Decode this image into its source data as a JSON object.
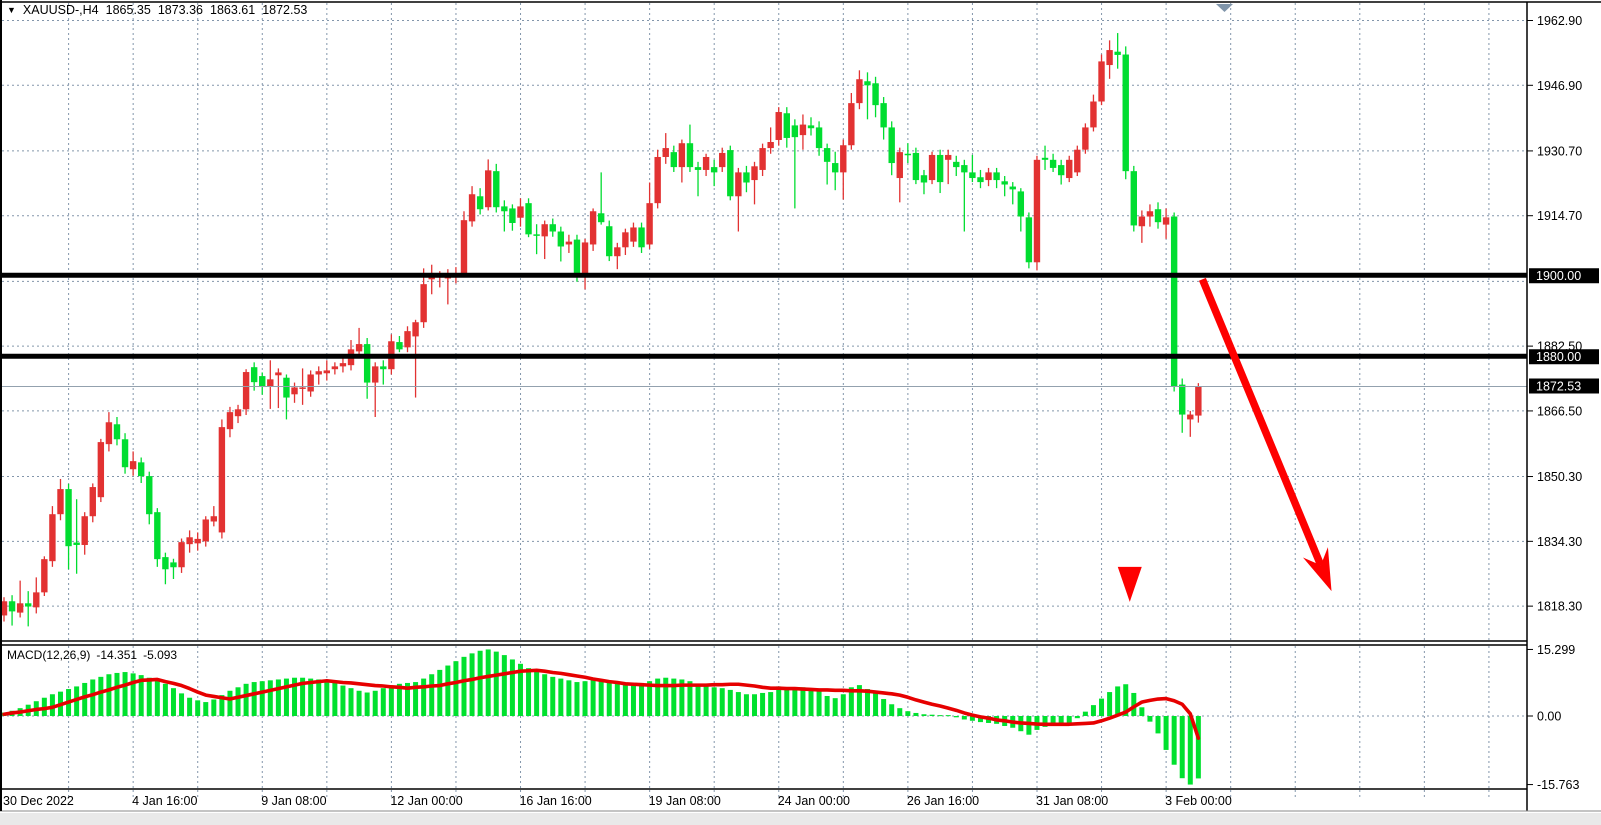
{
  "title": {
    "dropdown_icon": "▼",
    "symbol": "XAUUSD-,H4",
    "open": "1865.35",
    "high": "1873.36",
    "low": "1863.61",
    "close": "1872.53"
  },
  "macd_label": {
    "name": "MACD(12,26,9)",
    "value": "-14.351",
    "signal": "-5.093"
  },
  "colors": {
    "bull": "#e23232",
    "bear": "#00dd30",
    "histogram": "#00e12e",
    "signal_line": "#e60000",
    "grid": "#8396ab",
    "level_line": "#000000",
    "bid_line": "#93a1ae",
    "arrow": "#fe0000",
    "tag_bg": "#000000",
    "tag_text": "#ffffff",
    "scroll_marker": "#8095aa",
    "footer_bg": "#e9e9e9",
    "border": "#000000"
  },
  "price_axis": {
    "ticks": [
      1962.9,
      1946.9,
      1930.7,
      1914.7,
      1882.5,
      1866.5,
      1850.3,
      1834.3,
      1818.3
    ],
    "tags": [
      {
        "label": "1900.00",
        "price": 1900.0
      },
      {
        "label": "1880.00",
        "price": 1880.0
      }
    ],
    "current_tag": {
      "label": "1872.53",
      "price": 1872.53
    }
  },
  "macd_axis": {
    "max": 15.299,
    "max_label": "15.299",
    "zero_label": "0.00",
    "min": -15.763,
    "min_label": "-15.763"
  },
  "time_axis": [
    {
      "label": "30 Dec 2022",
      "bar": 0
    },
    {
      "label": "4 Jan 16:00",
      "bar": 16
    },
    {
      "label": "9 Jan 08:00",
      "bar": 32
    },
    {
      "label": "12 Jan 00:00",
      "bar": 48
    },
    {
      "label": "16 Jan 16:00",
      "bar": 64
    },
    {
      "label": "19 Jan 08:00",
      "bar": 80
    },
    {
      "label": "24 Jan 00:00",
      "bar": 96
    },
    {
      "label": "26 Jan 16:00",
      "bar": 112
    },
    {
      "label": "31 Jan 08:00",
      "bar": 128
    },
    {
      "label": "3 Feb 00:00",
      "bar": 144
    }
  ],
  "chart_data": {
    "type": "candlestick",
    "symbol": "XAUUSD-",
    "timeframe": "H4",
    "title": "XAUUSD-,H4 1865.35 1873.36 1863.61 1872.53",
    "price_ylim": [
      1810.0,
      1966.5
    ],
    "price_gridlines": [
      1962.9,
      1946.9,
      1930.7,
      1914.7,
      1898.5,
      1882.5,
      1866.5,
      1850.3,
      1834.3,
      1818.3
    ],
    "horizontal_levels": [
      1900.0,
      1880.0
    ],
    "current_price": 1872.53,
    "candles": [
      [
        1816.0,
        1820.5,
        1814.5,
        1819.5
      ],
      [
        1819.5,
        1821.0,
        1813.5,
        1817.0
      ],
      [
        1816.7,
        1824.6,
        1815.5,
        1819.0
      ],
      [
        1819.0,
        1822.0,
        1813.3,
        1818.2
      ],
      [
        1818.0,
        1825.4,
        1816.5,
        1821.7
      ],
      [
        1821.7,
        1830.6,
        1820.8,
        1829.9
      ],
      [
        1829.4,
        1843.0,
        1828.0,
        1841.0
      ],
      [
        1841.0,
        1849.7,
        1839.5,
        1847.2
      ],
      [
        1847.2,
        1848.5,
        1827.4,
        1833.1
      ],
      [
        1834.0,
        1844.7,
        1826.3,
        1833.4
      ],
      [
        1833.4,
        1841.5,
        1831.0,
        1840.5
      ],
      [
        1840.5,
        1848.6,
        1839.0,
        1847.7
      ],
      [
        1845.2,
        1859.6,
        1844.0,
        1858.8
      ],
      [
        1858.3,
        1866.2,
        1856.5,
        1863.7
      ],
      [
        1863.2,
        1865.0,
        1858.0,
        1859.5
      ],
      [
        1859.5,
        1861.0,
        1851.0,
        1852.6
      ],
      [
        1852.1,
        1856.5,
        1850.5,
        1854.1
      ],
      [
        1853.8,
        1855.0,
        1848.7,
        1850.4
      ],
      [
        1850.4,
        1851.5,
        1838.5,
        1841.0
      ],
      [
        1841.5,
        1842.5,
        1828.0,
        1829.9
      ],
      [
        1830.4,
        1831.5,
        1823.7,
        1827.4
      ],
      [
        1829.1,
        1830.0,
        1825.0,
        1827.9
      ],
      [
        1827.9,
        1835.0,
        1826.5,
        1834.1
      ],
      [
        1833.6,
        1837.0,
        1831.5,
        1835.3
      ],
      [
        1833.8,
        1836.5,
        1832.0,
        1834.9
      ],
      [
        1834.3,
        1840.5,
        1833.0,
        1839.7
      ],
      [
        1839.2,
        1843.0,
        1838.0,
        1840.5
      ],
      [
        1836.5,
        1864.4,
        1835.0,
        1862.5
      ],
      [
        1862.0,
        1867.5,
        1860.0,
        1866.2
      ],
      [
        1865.2,
        1868.0,
        1863.5,
        1866.9
      ],
      [
        1866.9,
        1876.8,
        1865.5,
        1876.1
      ],
      [
        1877.3,
        1878.5,
        1871.5,
        1873.6
      ],
      [
        1875.1,
        1876.0,
        1870.5,
        1872.4
      ],
      [
        1872.6,
        1879.0,
        1867.0,
        1874.3
      ],
      [
        1875.3,
        1877.0,
        1867.2,
        1876.0
      ],
      [
        1874.7,
        1875.5,
        1864.4,
        1869.8
      ],
      [
        1870.6,
        1873.5,
        1868.5,
        1872.3
      ],
      [
        1872.0,
        1877.0,
        1868.0,
        1872.3
      ],
      [
        1871.3,
        1876.5,
        1870.0,
        1875.5
      ],
      [
        1875.5,
        1877.5,
        1873.0,
        1876.3
      ],
      [
        1875.8,
        1879.0,
        1874.0,
        1876.5
      ],
      [
        1876.8,
        1878.5,
        1875.5,
        1877.5
      ],
      [
        1877.5,
        1879.5,
        1876.0,
        1878.3
      ],
      [
        1877.8,
        1884.0,
        1876.5,
        1881.7
      ],
      [
        1881.2,
        1887.0,
        1880.0,
        1883.0
      ],
      [
        1883.0,
        1884.5,
        1869.5,
        1873.5
      ],
      [
        1873.5,
        1878.5,
        1865.0,
        1877.5
      ],
      [
        1877.5,
        1879.0,
        1873.0,
        1876.8
      ],
      [
        1876.8,
        1885.4,
        1875.5,
        1883.7
      ],
      [
        1883.5,
        1885.0,
        1881.0,
        1881.7
      ],
      [
        1882.2,
        1887.4,
        1881.0,
        1886.2
      ],
      [
        1884.9,
        1889.0,
        1869.8,
        1888.4
      ],
      [
        1888.4,
        1901.7,
        1887.0,
        1897.8
      ],
      [
        1899.0,
        1902.6,
        1895.3,
        1899.5
      ],
      [
        1899.5,
        1901.0,
        1897.0,
        1899.8
      ],
      [
        1899.2,
        1901.5,
        1892.8,
        1899.9
      ],
      [
        1899.9,
        1902.0,
        1898.0,
        1900.5
      ],
      [
        1900.2,
        1915.8,
        1899.5,
        1913.6
      ],
      [
        1913.3,
        1922.0,
        1912.0,
        1920.0
      ],
      [
        1919.5,
        1921.5,
        1915.0,
        1916.3
      ],
      [
        1916.8,
        1928.6,
        1916.0,
        1925.9
      ],
      [
        1925.7,
        1927.5,
        1915.5,
        1916.8
      ],
      [
        1917.0,
        1918.5,
        1910.8,
        1915.8
      ],
      [
        1916.5,
        1917.5,
        1911.0,
        1912.9
      ],
      [
        1914.2,
        1919.0,
        1912.0,
        1917.0
      ],
      [
        1917.8,
        1919.0,
        1909.4,
        1910.1
      ],
      [
        1910.1,
        1912.6,
        1905.2,
        1910.0
      ],
      [
        1909.6,
        1913.5,
        1904.0,
        1912.6
      ],
      [
        1912.6,
        1914.0,
        1909.5,
        1910.8
      ],
      [
        1910.8,
        1912.0,
        1903.4,
        1907.1
      ],
      [
        1907.6,
        1910.0,
        1905.5,
        1908.3
      ],
      [
        1908.8,
        1910.0,
        1898.4,
        1899.7
      ],
      [
        1899.7,
        1909.0,
        1896.5,
        1908.1
      ],
      [
        1907.6,
        1916.5,
        1906.0,
        1915.8
      ],
      [
        1915.3,
        1925.4,
        1912.5,
        1913.1
      ],
      [
        1912.1,
        1913.5,
        1903.5,
        1904.7
      ],
      [
        1904.7,
        1908.0,
        1901.5,
        1906.9
      ],
      [
        1906.9,
        1911.5,
        1905.0,
        1910.6
      ],
      [
        1908.3,
        1913.0,
        1907.0,
        1911.8
      ],
      [
        1911.8,
        1913.0,
        1905.5,
        1906.9
      ],
      [
        1907.6,
        1922.9,
        1906.5,
        1917.8
      ],
      [
        1917.8,
        1931.0,
        1916.5,
        1929.2
      ],
      [
        1929.2,
        1935.1,
        1927.5,
        1931.4
      ],
      [
        1930.4,
        1932.0,
        1925.5,
        1926.7
      ],
      [
        1926.7,
        1933.5,
        1922.9,
        1932.6
      ],
      [
        1932.6,
        1937.2,
        1925.5,
        1926.7
      ],
      [
        1926.7,
        1928.0,
        1919.5,
        1926.0
      ],
      [
        1926.0,
        1930.0,
        1924.5,
        1929.2
      ],
      [
        1926.7,
        1928.5,
        1922.0,
        1925.4
      ],
      [
        1926.7,
        1931.5,
        1925.5,
        1930.2
      ],
      [
        1930.9,
        1932.0,
        1918.5,
        1919.5
      ],
      [
        1919.5,
        1926.5,
        1910.8,
        1925.4
      ],
      [
        1925.4,
        1927.0,
        1920.5,
        1922.9
      ],
      [
        1923.5,
        1928.0,
        1917.5,
        1926.9
      ],
      [
        1926.0,
        1932.5,
        1924.5,
        1931.4
      ],
      [
        1931.4,
        1936.5,
        1930.0,
        1932.9
      ],
      [
        1933.4,
        1941.5,
        1932.0,
        1940.3
      ],
      [
        1940.0,
        1941.5,
        1931.5,
        1933.9
      ],
      [
        1937.0,
        1938.5,
        1916.5,
        1934.1
      ],
      [
        1934.6,
        1939.7,
        1931.0,
        1937.2
      ],
      [
        1937.0,
        1939.0,
        1934.5,
        1936.3
      ],
      [
        1936.5,
        1938.0,
        1929.5,
        1931.4
      ],
      [
        1931.4,
        1932.5,
        1922.4,
        1928.0
      ],
      [
        1927.7,
        1930.5,
        1921.0,
        1925.4
      ],
      [
        1925.4,
        1933.5,
        1918.7,
        1932.1
      ],
      [
        1932.1,
        1945.0,
        1931.0,
        1942.5
      ],
      [
        1942.5,
        1950.6,
        1941.0,
        1948.4
      ],
      [
        1947.9,
        1950.1,
        1938.5,
        1946.9
      ],
      [
        1947.4,
        1949.0,
        1939.0,
        1942.0
      ],
      [
        1942.5,
        1944.0,
        1933.5,
        1936.5
      ],
      [
        1936.5,
        1938.0,
        1924.7,
        1927.7
      ],
      [
        1924.0,
        1931.5,
        1918.0,
        1930.4
      ],
      [
        1930.0,
        1932.6,
        1927.7,
        1929.8
      ],
      [
        1930.2,
        1931.5,
        1922.5,
        1923.5
      ],
      [
        1924.7,
        1926.0,
        1920.0,
        1922.9
      ],
      [
        1923.5,
        1930.5,
        1922.5,
        1929.7
      ],
      [
        1929.7,
        1931.0,
        1920.3,
        1923.0
      ],
      [
        1928.5,
        1931.0,
        1922.5,
        1929.7
      ],
      [
        1928.0,
        1929.5,
        1924.5,
        1926.7
      ],
      [
        1927.2,
        1928.5,
        1910.8,
        1925.4
      ],
      [
        1925.4,
        1929.7,
        1923.0,
        1924.0
      ],
      [
        1924.2,
        1926.0,
        1921.5,
        1923.0
      ],
      [
        1923.5,
        1926.5,
        1922.0,
        1925.4
      ],
      [
        1925.4,
        1926.5,
        1921.5,
        1923.5
      ],
      [
        1923.2,
        1924.5,
        1919.5,
        1922.4
      ],
      [
        1921.9,
        1923.0,
        1917.5,
        1921.2
      ],
      [
        1920.7,
        1921.5,
        1910.8,
        1914.5
      ],
      [
        1914.3,
        1915.5,
        1901.7,
        1903.2
      ],
      [
        1903.2,
        1929.5,
        1901.2,
        1928.5
      ],
      [
        1929.0,
        1932.0,
        1926.0,
        1928.5
      ],
      [
        1928.5,
        1930.0,
        1925.5,
        1926.5
      ],
      [
        1927.2,
        1928.5,
        1922.4,
        1924.7
      ],
      [
        1924.0,
        1929.5,
        1923.0,
        1928.5
      ],
      [
        1925.4,
        1932.0,
        1924.5,
        1931.0
      ],
      [
        1931.0,
        1937.5,
        1930.0,
        1936.5
      ],
      [
        1936.5,
        1944.6,
        1935.5,
        1942.9
      ],
      [
        1942.9,
        1954.5,
        1942.0,
        1952.8
      ],
      [
        1951.9,
        1958.0,
        1948.5,
        1955.6
      ],
      [
        1955.2,
        1959.8,
        1951.0,
        1954.4
      ],
      [
        1954.5,
        1956.5,
        1923.7,
        1925.7
      ],
      [
        1925.7,
        1927.0,
        1910.8,
        1912.3
      ],
      [
        1912.1,
        1916.0,
        1908.0,
        1914.5
      ],
      [
        1914.5,
        1917.5,
        1912.0,
        1915.8
      ],
      [
        1916.3,
        1918.0,
        1911.5,
        1913.1
      ],
      [
        1912.5,
        1916.5,
        1909.0,
        1914.3
      ],
      [
        1914.5,
        1915.5,
        1871.3,
        1872.5
      ],
      [
        1873.0,
        1874.5,
        1861.1,
        1865.6
      ],
      [
        1864.4,
        1866.5,
        1860.1,
        1865.6
      ],
      [
        1865.35,
        1873.36,
        1863.61,
        1872.53
      ]
    ],
    "macd": {
      "params": [
        12,
        26,
        9
      ],
      "current_macd": -14.351,
      "current_signal": -5.093,
      "ylim": [
        -15.763,
        15.299
      ],
      "histogram": [
        0.8,
        1.2,
        1.8,
        2.6,
        3.4,
        4.2,
        5.0,
        5.6,
        6.2,
        6.8,
        7.6,
        8.4,
        9.0,
        9.6,
        9.9,
        10.1,
        9.8,
        9.4,
        8.8,
        8.2,
        7.4,
        6.4,
        5.2,
        4.2,
        3.6,
        3.2,
        3.8,
        4.8,
        5.8,
        6.6,
        7.4,
        7.8,
        8.0,
        8.2,
        8.4,
        8.6,
        8.8,
        8.8,
        8.6,
        8.4,
        8.0,
        7.6,
        7.0,
        6.4,
        5.8,
        5.4,
        5.8,
        6.4,
        7.0,
        7.4,
        7.6,
        7.8,
        8.6,
        9.6,
        10.6,
        11.6,
        12.6,
        13.6,
        14.4,
        15.0,
        15.3,
        14.8,
        14.0,
        13.0,
        12.0,
        11.0,
        10.2,
        9.6,
        9.0,
        8.6,
        8.2,
        7.8,
        8.0,
        8.4,
        8.2,
        7.8,
        7.4,
        7.2,
        7.4,
        7.6,
        8.0,
        8.6,
        8.8,
        8.6,
        8.4,
        8.0,
        7.4,
        7.0,
        6.6,
        6.4,
        6.0,
        5.5,
        5.0,
        5.0,
        5.3,
        5.5,
        6.8,
        6.6,
        6.4,
        6.6,
        6.2,
        6.2,
        4.6,
        4.1,
        5.0,
        6.6,
        7.1,
        6.2,
        5.3,
        3.9,
        2.7,
        1.8,
        1.1,
        0.7,
        0.4,
        0.3,
        0.2,
        0.2,
        -0.3,
        -0.8,
        -1.1,
        -1.4,
        -1.6,
        -1.8,
        -2.3,
        -2.7,
        -3.5,
        -4.3,
        -3.2,
        -2.5,
        -2.2,
        -2.0,
        -1.5,
        -0.5,
        1.0,
        2.5,
        4.0,
        5.5,
        6.8,
        7.3,
        5.3,
        2.0,
        -1.3,
        -4.0,
        -7.8,
        -11.2,
        -14.3,
        -15.763,
        -14.351
      ],
      "signal": [
        0.4,
        0.7,
        0.9,
        1.2,
        1.5,
        1.7,
        2.0,
        2.6,
        3.2,
        3.8,
        4.4,
        4.9,
        5.5,
        6.0,
        6.6,
        7.1,
        7.7,
        8.2,
        8.3,
        8.4,
        7.9,
        7.5,
        7.0,
        6.3,
        5.5,
        4.8,
        4.5,
        4.2,
        3.9,
        4.3,
        4.7,
        5.1,
        5.5,
        5.9,
        6.3,
        6.7,
        7.1,
        7.5,
        7.7,
        7.9,
        8.1,
        7.9,
        7.7,
        7.6,
        7.4,
        7.2,
        7.0,
        6.9,
        6.7,
        6.6,
        6.4,
        6.6,
        6.7,
        6.9,
        7.0,
        7.4,
        7.7,
        8.1,
        8.4,
        8.8,
        9.1,
        9.4,
        9.7,
        10.0,
        10.3,
        10.4,
        10.5,
        10.3,
        10.0,
        9.8,
        9.5,
        9.2,
        8.9,
        8.5,
        8.2,
        7.9,
        7.7,
        7.4,
        7.3,
        7.2,
        7.1,
        7.0,
        7.0,
        7.0,
        7.1,
        7.1,
        7.1,
        7.1,
        7.2,
        7.2,
        7.3,
        7.3,
        7.1,
        6.9,
        6.6,
        6.4,
        6.4,
        6.3,
        6.3,
        6.2,
        6.1,
        6.0,
        6.0,
        5.9,
        5.9,
        5.8,
        5.8,
        5.7,
        5.5,
        5.3,
        5.1,
        4.8,
        4.3,
        3.7,
        3.2,
        2.7,
        2.3,
        1.8,
        1.3,
        0.7,
        0.2,
        -0.2,
        -0.5,
        -0.9,
        -1.1,
        -1.4,
        -1.6,
        -1.7,
        -1.85,
        -1.9,
        -1.9,
        -1.9,
        -1.9,
        -1.8,
        -1.7,
        -1.6,
        -1.1,
        -0.5,
        0.2,
        0.9,
        2.1,
        3.2,
        3.6,
        3.9,
        4.0,
        3.5,
        2.7,
        0.5,
        -5.093
      ]
    },
    "annotations": {
      "sell_marker": {
        "bar": 139.5,
        "price": 1828.0
      },
      "trend_arrow": {
        "from_bar": 148.5,
        "from_price": 1899.0,
        "to_bar": 164.5,
        "to_price": 1822.0
      }
    }
  }
}
